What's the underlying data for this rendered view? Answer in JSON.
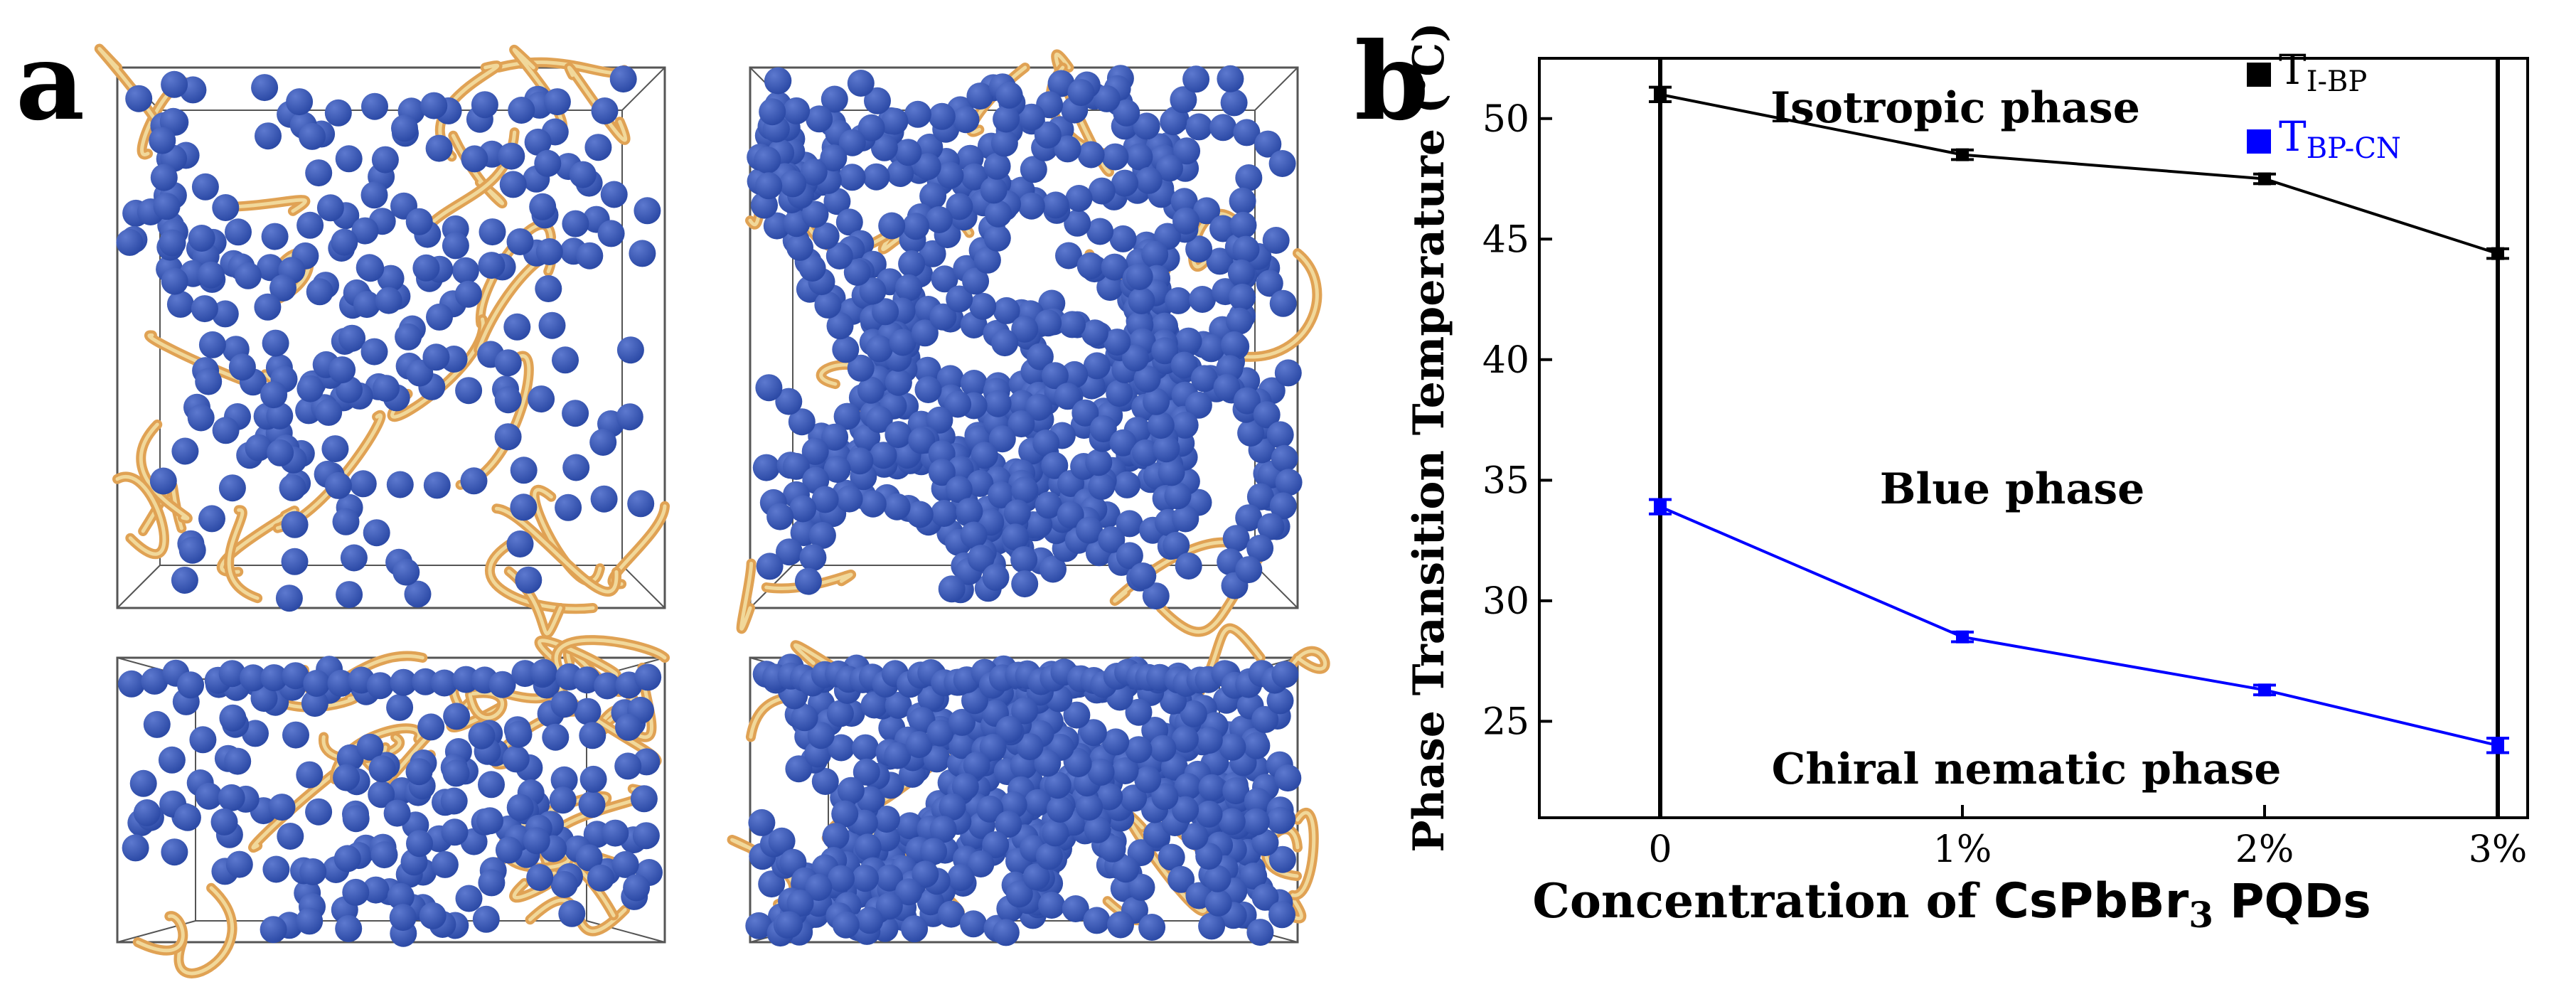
{
  "figure": {
    "panel_a_label": "a",
    "panel_b_label": "b"
  },
  "simulation_panels": {
    "colors": {
      "sphere": "#2c4aa6",
      "sphere_highlight": "#5d79cf",
      "tube": "#e0a254",
      "tube_light": "#f1d89a",
      "box_edge": "#555555"
    },
    "views": [
      {
        "name": "top-view-low-concentration",
        "density": "sparse"
      },
      {
        "name": "top-view-high-concentration",
        "density": "dense"
      },
      {
        "name": "side-view-low-concentration",
        "density": "sparse"
      },
      {
        "name": "side-view-high-concentration",
        "density": "dense"
      }
    ]
  },
  "chart_data": {
    "type": "line",
    "categories": [
      "0",
      "1%",
      "2%",
      "3%"
    ],
    "xlabel_parts": [
      "Concentration of ",
      "CsPbBr",
      "3",
      " PQDs"
    ],
    "ylabel": "Phase Transition Temperature (℃)",
    "ylim": [
      21,
      52.5
    ],
    "yticks": [
      25,
      30,
      35,
      40,
      45,
      50
    ],
    "grid": false,
    "legend_position": "top-right",
    "vertical_lines_at": [
      "0",
      "3%"
    ],
    "series": [
      {
        "name_main": "T",
        "name_sub": "I-BP",
        "color": "#000000",
        "values": [
          51.0,
          48.5,
          47.5,
          44.4
        ],
        "errors": [
          0.3,
          0.2,
          0.2,
          0.2
        ]
      },
      {
        "name_main": "T",
        "name_sub": "BP-CN",
        "color": "#0000ff",
        "values": [
          33.9,
          28.5,
          26.3,
          24.0
        ],
        "errors": [
          0.3,
          0.2,
          0.2,
          0.3
        ]
      }
    ],
    "annotations": {
      "isotropic": "Isotropic phase",
      "blue": "Blue phase",
      "chiral": "Chiral nematic phase"
    }
  }
}
